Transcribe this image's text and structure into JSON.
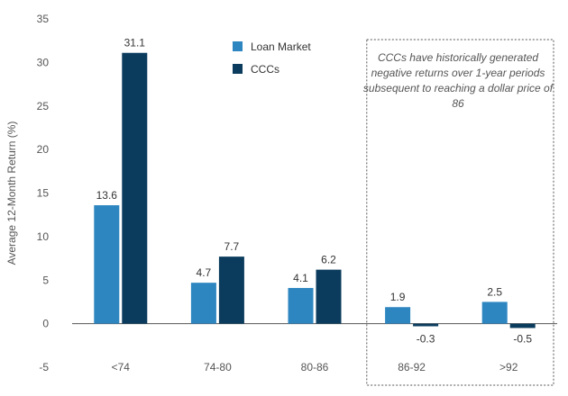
{
  "chart_data": {
    "type": "bar",
    "title": "",
    "xlabel": "",
    "ylabel": "Average 12-Month Return (%)",
    "categories": [
      "<74",
      "74-80",
      "80-86",
      "86-92",
      ">92"
    ],
    "series": [
      {
        "name": "Loan Market",
        "color": "#2e86c1",
        "values": [
          13.6,
          4.7,
          4.1,
          1.9,
          2.5
        ]
      },
      {
        "name": "CCCs",
        "color": "#0b3c5d",
        "values": [
          31.1,
          7.7,
          6.2,
          -0.3,
          -0.5
        ]
      }
    ],
    "ylim": [
      -5,
      35
    ],
    "yticks": [
      -5,
      0,
      5,
      10,
      15,
      20,
      25,
      30,
      35
    ],
    "grid": false,
    "legend": {
      "placement": "top-center"
    },
    "annotation": {
      "text": "CCCs have historically generated negative returns over 1-year periods subsequent to reaching a dollar price of 86",
      "categories": [
        "86-92",
        ">92"
      ]
    }
  }
}
